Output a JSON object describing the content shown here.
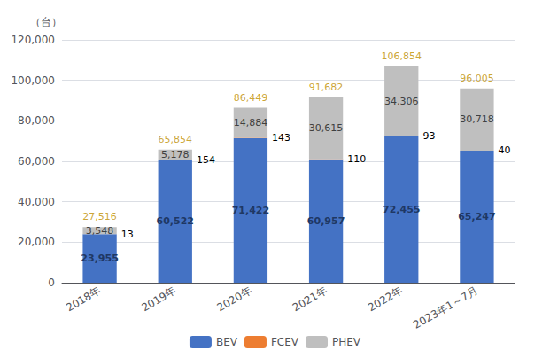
{
  "chart_data": {
    "type": "bar",
    "stacked": true,
    "ylabel": "（台）",
    "categories": [
      "2018年",
      "2019年",
      "2020年",
      "2021年",
      "2022年",
      "2023年1～7月"
    ],
    "series": [
      {
        "name": "BEV",
        "color": "#4472c4",
        "values": [
          23955,
          60522,
          71422,
          60957,
          72455,
          65247
        ],
        "value_labels": [
          "23,955",
          "60,522",
          "71,422",
          "60,957",
          "72,455",
          "65,247"
        ]
      },
      {
        "name": "FCEV",
        "color": "#ed7d31",
        "values": [
          13,
          154,
          143,
          110,
          93,
          40
        ]
      },
      {
        "name": "PHEV",
        "color": "#bfbfbf",
        "values": [
          3548,
          5178,
          14884,
          30615,
          34306,
          30718
        ],
        "value_labels": [
          "3,548",
          "5,178",
          "14,884",
          "30,615",
          "34,306",
          "30,718"
        ]
      }
    ],
    "totals": {
      "values": [
        27516,
        65854,
        86449,
        91682,
        106854,
        96005
      ],
      "value_labels": [
        "27,516",
        "65,854",
        "86,449",
        "91,682",
        "106,854",
        "96,005"
      ],
      "color": "#bf8f00"
    },
    "ylim": [
      0,
      120000
    ],
    "yticks": [
      0,
      {
        "value": 20000,
        "label": "20,000"
      },
      {
        "value": 40000,
        "label": "40,000"
      },
      {
        "value": 60000,
        "label": "60,000"
      },
      {
        "value": 80000,
        "label": "80,000"
      },
      {
        "value": 100000,
        "label": "100,000"
      },
      {
        "value": 120000,
        "label": "120,000"
      }
    ],
    "data_labels": true,
    "grid": true,
    "legend": "bottom"
  }
}
